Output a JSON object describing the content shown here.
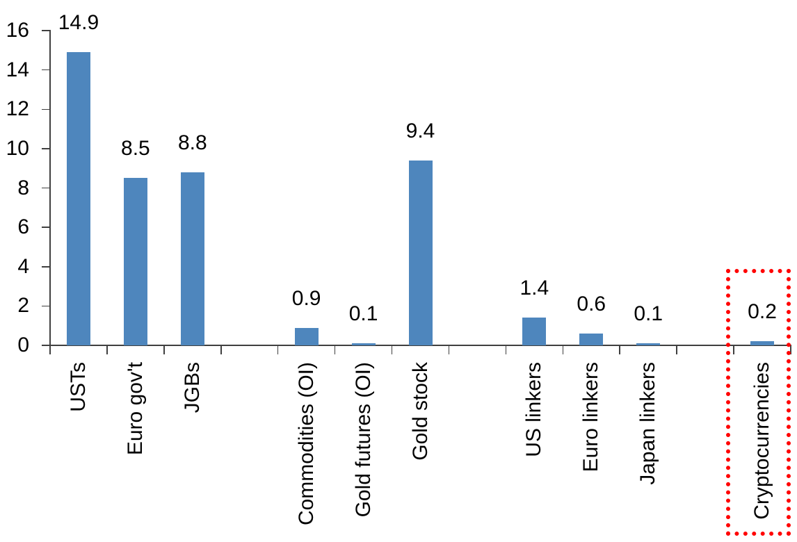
{
  "chart_data": {
    "type": "bar",
    "title": "",
    "xlabel": "",
    "ylabel": "",
    "ylim": [
      0,
      16
    ],
    "ytick_step": 2,
    "yticks": [
      0,
      2,
      4,
      6,
      8,
      10,
      12,
      14,
      16
    ],
    "grid": "off",
    "legend": "none",
    "value_labels_shown": true,
    "bar_color": "#4E86BD",
    "axis_color": "#3F3F3F",
    "text_color": "#000000",
    "highlight_box_color": "#FF0000",
    "highlight_box_style": "dotted",
    "highlighted_category": "Cryptocurrencies",
    "groups": [
      {
        "items": [
          {
            "label": "USTs",
            "value": 14.9
          },
          {
            "label": "Euro gov't",
            "value": 8.5
          },
          {
            "label": "JGBs",
            "value": 8.8
          }
        ]
      },
      {
        "items": [
          {
            "label": "Commodities (OI)",
            "value": 0.9
          },
          {
            "label": "Gold futures (OI)",
            "value": 0.1
          },
          {
            "label": "Gold stock",
            "value": 9.4
          }
        ]
      },
      {
        "items": [
          {
            "label": "US linkers",
            "value": 1.4
          },
          {
            "label": "Euro linkers",
            "value": 0.6
          },
          {
            "label": "Japan linkers",
            "value": 0.1
          }
        ]
      },
      {
        "items": [
          {
            "label": "Cryptocurrencies",
            "value": 0.2
          }
        ],
        "highlighted": true
      }
    ]
  }
}
